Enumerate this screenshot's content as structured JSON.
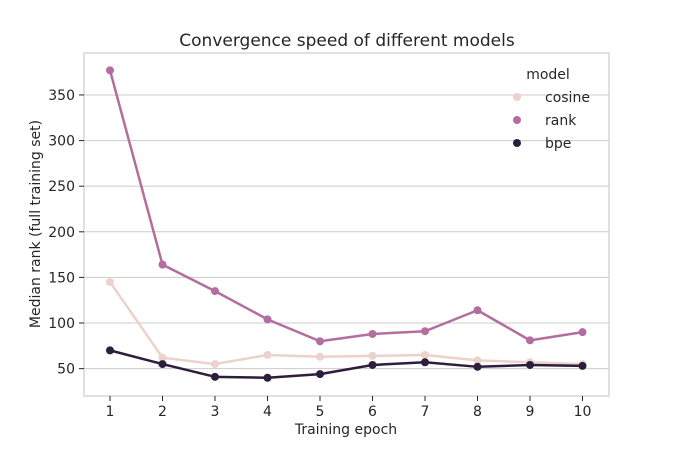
{
  "chart_data": {
    "type": "line",
    "title": "Convergence speed of different models",
    "xlabel": "Training epoch",
    "ylabel": "Median rank (full training set)",
    "x": [
      1,
      2,
      3,
      4,
      5,
      6,
      7,
      8,
      9,
      10
    ],
    "yticks": [
      50,
      100,
      150,
      200,
      250,
      300,
      350
    ],
    "ylim": [
      20,
      396
    ],
    "grid": "horizontal",
    "legend": {
      "title": "model",
      "position": "top-right"
    },
    "series": [
      {
        "name": "cosine",
        "color": "#edd1cb",
        "values": [
          145,
          62,
          55,
          65,
          63,
          64,
          65,
          59,
          57,
          55
        ]
      },
      {
        "name": "rank",
        "color": "#b36d9e",
        "values": [
          377,
          164,
          135,
          104,
          80,
          88,
          91,
          114,
          81,
          90
        ]
      },
      {
        "name": "bpe",
        "color": "#2d1e3e",
        "values": [
          70,
          55,
          41,
          40,
          44,
          54,
          57,
          52,
          54,
          53
        ]
      }
    ]
  }
}
